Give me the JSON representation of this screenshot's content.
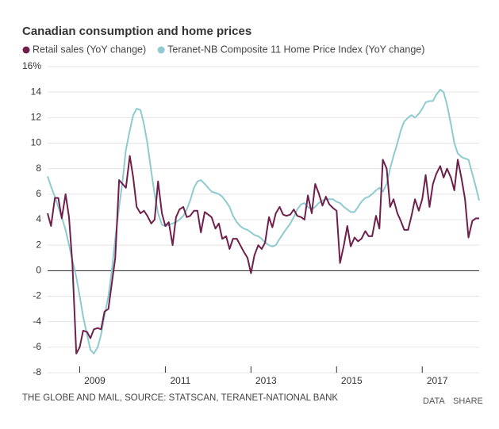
{
  "chart_data": {
    "type": "line",
    "title": "Canadian consumption and home prices",
    "source": "THE GLOBE AND MAIL, SOURCE: STATSCAN, TERANET-NATIONAL BANK",
    "buttons": [
      "DATA",
      "SHARE"
    ],
    "x": [
      2008.25,
      2008.33,
      2008.42,
      2008.5,
      2008.58,
      2008.67,
      2008.75,
      2008.83,
      2008.92,
      2009,
      2009.08,
      2009.17,
      2009.25,
      2009.33,
      2009.42,
      2009.5,
      2009.58,
      2009.67,
      2009.75,
      2009.83,
      2009.92,
      2010,
      2010.08,
      2010.17,
      2010.25,
      2010.33,
      2010.42,
      2010.5,
      2010.58,
      2010.67,
      2010.75,
      2010.83,
      2010.92,
      2011,
      2011.08,
      2011.17,
      2011.25,
      2011.33,
      2011.42,
      2011.5,
      2011.58,
      2011.67,
      2011.75,
      2011.83,
      2011.92,
      2012,
      2012.08,
      2012.17,
      2012.25,
      2012.33,
      2012.42,
      2012.5,
      2012.58,
      2012.67,
      2012.75,
      2012.83,
      2012.92,
      2013,
      2013.08,
      2013.17,
      2013.25,
      2013.33,
      2013.42,
      2013.5,
      2013.58,
      2013.67,
      2013.75,
      2013.83,
      2013.92,
      2014,
      2014.08,
      2014.17,
      2014.25,
      2014.33,
      2014.42,
      2014.5,
      2014.58,
      2014.67,
      2014.75,
      2014.83,
      2014.92,
      2015,
      2015.08,
      2015.17,
      2015.25,
      2015.33,
      2015.42,
      2015.5,
      2015.58,
      2015.67,
      2015.75,
      2015.83,
      2015.92,
      2016,
      2016.08,
      2016.17,
      2016.25,
      2016.33,
      2016.42,
      2016.5,
      2016.58,
      2016.67,
      2016.75,
      2016.83,
      2016.92,
      2017,
      2017.08,
      2017.17,
      2017.25,
      2017.33,
      2017.42,
      2017.5,
      2017.58,
      2017.67,
      2017.75,
      2017.83,
      2017.92,
      2018,
      2018.08,
      2018.17,
      2018.25,
      2018.33
    ],
    "series": [
      {
        "name": "Retail sales (YoY change)",
        "color": "#6e1f4c",
        "values": [
          4.5,
          3.5,
          5.7,
          5.7,
          4.1,
          6.0,
          4.2,
          0.5,
          -6.5,
          -6.0,
          -4.7,
          -4.8,
          -5.3,
          -4.6,
          -4.5,
          -4.6,
          -3.2,
          -3.0,
          -1.0,
          1.0,
          7.1,
          6.8,
          6.5,
          9.0,
          7.3,
          5.0,
          4.5,
          4.7,
          4.3,
          3.7,
          4.0,
          7.0,
          4.5,
          3.5,
          3.8,
          2.0,
          4.2,
          4.8,
          5.0,
          4.2,
          4.3,
          4.7,
          4.7,
          3.0,
          4.6,
          4.4,
          4.2,
          3.3,
          3.7,
          2.5,
          2.7,
          1.7,
          2.5,
          2.5,
          2.0,
          1.5,
          1.0,
          -0.2,
          1.2,
          2.0,
          1.7,
          2.2,
          4.2,
          3.4,
          4.5,
          5.0,
          4.4,
          4.3,
          4.4,
          4.8,
          4.3,
          4.2,
          4.0,
          5.9,
          4.5,
          6.8,
          6.1,
          5.1,
          5.8,
          5.2,
          4.9,
          4.7,
          0.6,
          2.0,
          3.5,
          1.9,
          2.6,
          2.3,
          2.5,
          3.1,
          2.7,
          2.7,
          4.3,
          3.3,
          8.7,
          8.0,
          5.0,
          5.6,
          4.5,
          3.9,
          3.2,
          3.2,
          4.3,
          5.6,
          4.7,
          5.6,
          7.5,
          5.0,
          6.8,
          7.6,
          8.2,
          7.3,
          8.0,
          7.3,
          6.3,
          8.7,
          7.2,
          5.6,
          2.6,
          3.9,
          4.1,
          4.1
        ]
      },
      {
        "name": "Teranet-NB Composite 11 Home Price Index (YoY change)",
        "color": "#8ecbd1",
        "values": [
          7.4,
          6.6,
          5.8,
          5.0,
          4.2,
          3.2,
          2.0,
          0.8,
          -0.5,
          -2.0,
          -3.6,
          -5.0,
          -6.2,
          -6.5,
          -6.0,
          -5.0,
          -3.5,
          -2.0,
          0.0,
          2.5,
          5.0,
          7.0,
          9.5,
          11.0,
          12.2,
          12.7,
          12.6,
          11.5,
          10.0,
          7.8,
          6.0,
          4.5,
          3.6,
          3.5,
          3.6,
          3.7,
          3.8,
          4.0,
          4.3,
          4.8,
          5.5,
          6.5,
          7.0,
          7.1,
          6.8,
          6.5,
          6.2,
          6.1,
          6.0,
          5.8,
          5.4,
          5.0,
          4.3,
          3.8,
          3.5,
          3.3,
          3.2,
          3.0,
          2.8,
          2.7,
          2.5,
          2.2,
          2.0,
          1.9,
          2.0,
          2.5,
          2.9,
          3.3,
          3.7,
          4.2,
          4.8,
          5.2,
          5.3,
          5.0,
          4.8,
          5.0,
          5.3,
          5.5,
          5.6,
          5.6,
          5.6,
          5.4,
          5.3,
          5.0,
          4.8,
          4.6,
          4.6,
          5.0,
          5.4,
          5.7,
          5.8,
          6.0,
          6.3,
          6.5,
          6.2,
          6.8,
          8.0,
          9.0,
          10.0,
          11.0,
          11.7,
          12.0,
          12.2,
          12.0,
          12.3,
          12.7,
          13.2,
          13.3,
          13.3,
          13.8,
          14.2,
          14.0,
          13.0,
          11.5,
          10.0,
          9.2,
          8.9,
          8.8,
          8.7,
          7.6,
          6.6,
          5.5
        ]
      }
    ],
    "xlim": [
      2008.25,
      2018.33
    ],
    "xticks": [
      2009,
      2011,
      2013,
      2015,
      2017
    ],
    "ylim": [
      -8,
      16
    ],
    "yticks": [
      -8,
      -6,
      -4,
      -2,
      0,
      2,
      4,
      6,
      8,
      10,
      12,
      14,
      {
        "value": 16,
        "label": "16%"
      }
    ],
    "grid": true
  }
}
